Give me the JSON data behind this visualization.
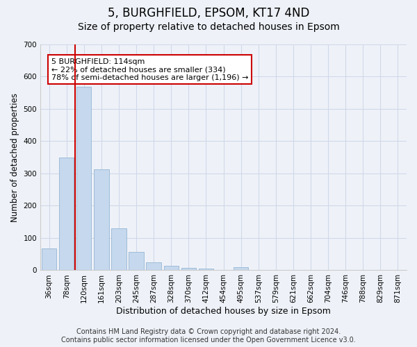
{
  "title1": "5, BURGHFIELD, EPSOM, KT17 4ND",
  "title2": "Size of property relative to detached houses in Epsom",
  "xlabel": "Distribution of detached houses by size in Epsom",
  "ylabel": "Number of detached properties",
  "categories": [
    "36sqm",
    "78sqm",
    "120sqm",
    "161sqm",
    "203sqm",
    "245sqm",
    "287sqm",
    "328sqm",
    "370sqm",
    "412sqm",
    "454sqm",
    "495sqm",
    "537sqm",
    "579sqm",
    "621sqm",
    "662sqm",
    "704sqm",
    "746sqm",
    "788sqm",
    "829sqm",
    "871sqm"
  ],
  "values": [
    68,
    350,
    568,
    313,
    130,
    57,
    25,
    13,
    7,
    5,
    0,
    10,
    0,
    0,
    0,
    0,
    0,
    0,
    0,
    0,
    0
  ],
  "bar_color": "#c5d8ed",
  "bar_edge_color": "#a0bcd8",
  "vline_x": 1.5,
  "vline_color": "#cc0000",
  "annotation_text": "5 BURGHFIELD: 114sqm\n← 22% of detached houses are smaller (334)\n78% of semi-detached houses are larger (1,196) →",
  "annotation_box_color": "#ffffff",
  "annotation_box_edge_color": "#cc0000",
  "ylim": [
    0,
    700
  ],
  "yticks": [
    0,
    100,
    200,
    300,
    400,
    500,
    600,
    700
  ],
  "footer1": "Contains HM Land Registry data © Crown copyright and database right 2024.",
  "footer2": "Contains public sector information licensed under the Open Government Licence v3.0.",
  "bg_color": "#eef2f8",
  "plot_bg_color": "#eef2f8",
  "grid_color": "#d0d8e8",
  "title1_fontsize": 12,
  "title2_fontsize": 10,
  "tick_fontsize": 7.5,
  "ylabel_fontsize": 8.5,
  "xlabel_fontsize": 9,
  "footer_fontsize": 7,
  "annotation_fontsize": 8
}
